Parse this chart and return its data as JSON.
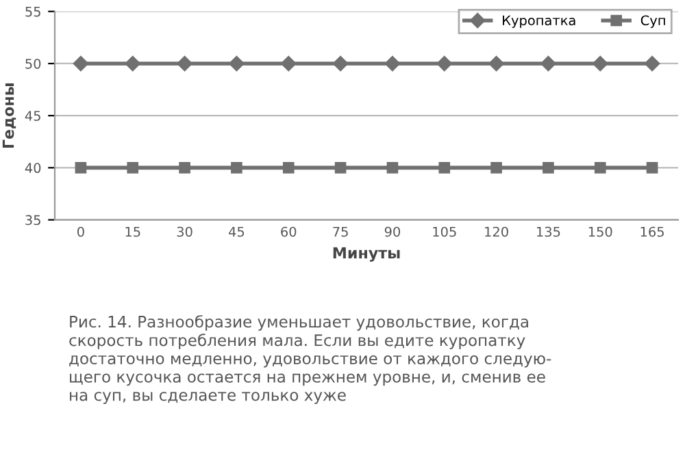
{
  "chart_data": {
    "type": "line",
    "categories": [
      "0",
      "15",
      "30",
      "45",
      "60",
      "75",
      "90",
      "105",
      "120",
      "135",
      "150",
      "165"
    ],
    "series": [
      {
        "name": "Куропатка",
        "color": "#707070",
        "marker": "diamond",
        "values": [
          50,
          50,
          50,
          50,
          50,
          50,
          50,
          50,
          50,
          50,
          50,
          50
        ]
      },
      {
        "name": "Суп",
        "color": "#707070",
        "marker": "square",
        "values": [
          40,
          40,
          40,
          40,
          40,
          40,
          40,
          40,
          40,
          40,
          40,
          40
        ]
      }
    ],
    "xlabel": "Минуты",
    "ylabel": "Гедоны",
    "ylim": [
      35,
      55
    ],
    "yticks": [
      35,
      40,
      45,
      50,
      55
    ],
    "grid": "y",
    "legend": "top right",
    "line_style": "solid",
    "annotations": [
      "Рис. 14. Разнообразие уменьшает удовольствие, когда\nскорость потребления мала. Если вы едите куропатку\nдостаточно медленно, удовольствие от каждого следую-\nщего кусочка остается на прежнем уровне, и, сменив ее\nна суп, вы сделаете только хуже"
    ]
  }
}
